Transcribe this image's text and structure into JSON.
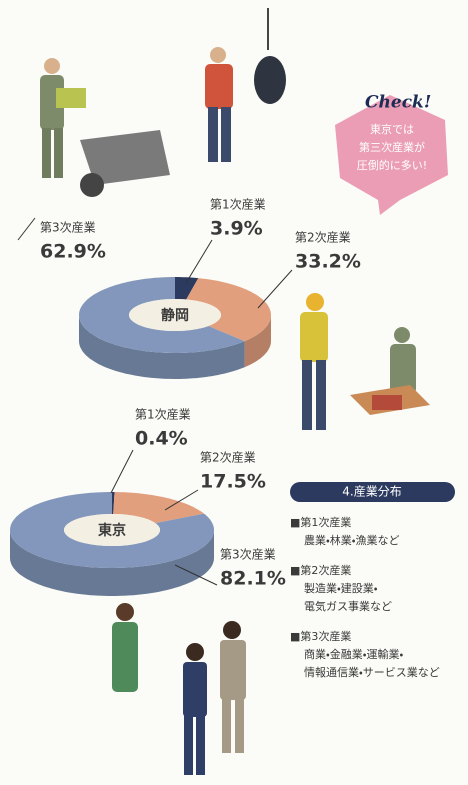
{
  "chart_data": [
    {
      "type": "pie",
      "title": "静岡",
      "categories": [
        "第1次産業",
        "第2次産業",
        "第3次産業"
      ],
      "values": [
        3.9,
        33.2,
        62.9
      ],
      "value_labels": [
        "3.9%",
        "33.2%",
        "62.9%"
      ],
      "colors": [
        "#2b3a5e",
        "#e19f7d",
        "#8297bb"
      ]
    },
    {
      "type": "pie",
      "title": "東京",
      "categories": [
        "第1次産業",
        "第2次産業",
        "第3次産業"
      ],
      "values": [
        0.4,
        17.5,
        82.1
      ],
      "value_labels": [
        "0.4%",
        "17.5%",
        "82.1%"
      ],
      "colors": [
        "#2b3a5e",
        "#e19f7d",
        "#8297bb"
      ]
    }
  ],
  "check": {
    "title": "Check!",
    "lines": [
      "東京では",
      "第三次産業が",
      "圧倒的に多い!"
    ]
  },
  "legend": {
    "title": "4.産業分布",
    "items": [
      {
        "name": "■第1次産業",
        "lines": [
          "農業・林業・漁業など"
        ]
      },
      {
        "name": "■第2次産業",
        "lines": [
          "製造業・建設業・",
          "電気ガス事業など"
        ]
      },
      {
        "name": "■第3次産業",
        "lines": [
          "商業・金融業・運輸業・",
          "情報通信業・サービス業など"
        ]
      }
    ]
  }
}
